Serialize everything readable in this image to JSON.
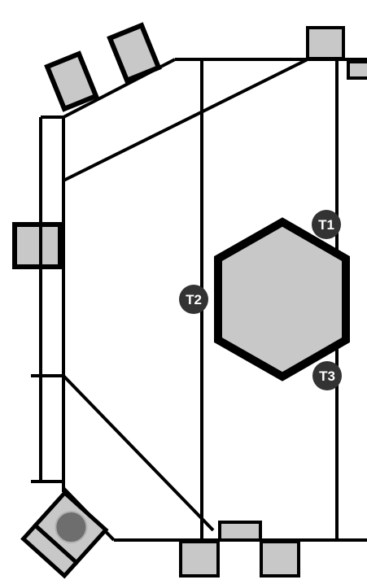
{
  "diagram": {
    "colors": {
      "line": "#000000",
      "block_fill": "#c8c8c8",
      "hexagon_fill": "#c8c8c8",
      "marker_fill": "#333333",
      "marker_text": "#ffffff",
      "round_part": "#6e6e6e",
      "round_part_stroke": "#b0b0b0"
    },
    "markers": [
      {
        "id": "t1",
        "label": "T1"
      },
      {
        "id": "t2",
        "label": "T2"
      },
      {
        "id": "t3",
        "label": "T3"
      }
    ]
  }
}
